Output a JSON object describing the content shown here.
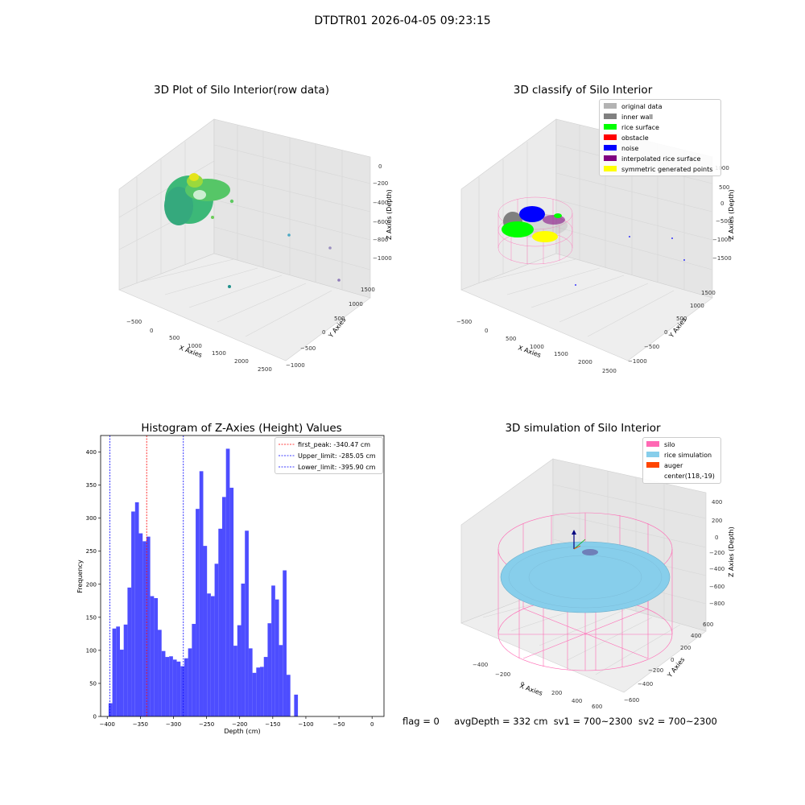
{
  "suptitle": "DTDTR01 2026-04-05 09:23:15",
  "footer": {
    "flag": "flag = 0",
    "avg_depth": "avgDepth = 332 cm",
    "sv1": "sv1 = 700~2300",
    "sv2": "sv2 = 700~2300"
  },
  "colors": {
    "hist_bar": "#4d4dff",
    "first_peak": "#ff0000",
    "limits": "#0000ff",
    "silo": "#ff69b4",
    "rice_sim": "#87ceeb",
    "auger": "#ff4500"
  },
  "chart_data": [
    {
      "type": "scatter",
      "title": "3D Plot of Silo Interior(row data)",
      "xlabel": "X Axies",
      "ylabel": "Y Axies",
      "zlabel": "Z Axies (Depth)",
      "x_ticks": [
        "−500",
        "0",
        "500",
        "1000",
        "1500",
        "2000",
        "2500"
      ],
      "y_ticks": [
        "−1000",
        "−500",
        "0",
        "500",
        "1000",
        "1500"
      ],
      "z_ticks": [
        "−1000",
        "−800",
        "−600",
        "−400",
        "−200",
        "0"
      ],
      "colormap": "viridis"
    },
    {
      "type": "scatter",
      "title": "3D classify of Silo Interior",
      "xlabel": "X Axies",
      "ylabel": "Y Axies",
      "zlabel": "Z Axies (Depth)",
      "x_ticks": [
        "−500",
        "0",
        "500",
        "1000",
        "1500",
        "2000",
        "2500"
      ],
      "y_ticks": [
        "−1000",
        "−500",
        "0",
        "500",
        "1000",
        "1500"
      ],
      "z_ticks": [
        "−1500",
        "−1000",
        "−500",
        "0",
        "500",
        "1000"
      ],
      "legend": [
        {
          "label": "original data",
          "color": "#b3b3b3"
        },
        {
          "label": "inner wall",
          "color": "#808080"
        },
        {
          "label": "rice surface",
          "color": "#00ff00"
        },
        {
          "label": "obstacle",
          "color": "#ff0000"
        },
        {
          "label": "noise",
          "color": "#0000ff"
        },
        {
          "label": "interpolated rice surface",
          "color": "#800080"
        },
        {
          "label": "symmetric generated points",
          "color": "#ffff00"
        }
      ],
      "legend_loc": "upper right"
    },
    {
      "type": "bar",
      "title": "Histogram of Z-Axies (Height) Values",
      "xlabel": "Depth (cm)",
      "ylabel": "Frequency",
      "xlim": [
        -410,
        18
      ],
      "ylim": [
        0,
        425
      ],
      "bin_start": -398,
      "bin_width": 5.72,
      "values": [
        20,
        133,
        136,
        101,
        139,
        195,
        310,
        324,
        277,
        265,
        272,
        182,
        179,
        131,
        99,
        90,
        91,
        86,
        83,
        76,
        88,
        103,
        140,
        314,
        371,
        258,
        186,
        182,
        231,
        284,
        332,
        405,
        346,
        107,
        138,
        201,
        281,
        103,
        66,
        74,
        75,
        90,
        141,
        198,
        177,
        108,
        221,
        63,
        0,
        33
      ],
      "x_ticks": [
        -400,
        -350,
        -300,
        -250,
        -200,
        -150,
        -100,
        -50,
        0
      ],
      "x_tick_labels": [
        "−400",
        "−350",
        "−300",
        "−250",
        "−200",
        "−150",
        "−100",
        "−50",
        "0"
      ],
      "y_ticks": [
        0,
        50,
        100,
        150,
        200,
        250,
        300,
        350,
        400
      ],
      "vlines": [
        {
          "label": "first_peak: -340.47 cm",
          "x": -340.47,
          "color": "#ff0000"
        },
        {
          "label": "Upper_limit: -285.05 cm",
          "x": -285.05,
          "color": "#0000ff"
        },
        {
          "label": "Lower_limit: -395.90 cm",
          "x": -395.9,
          "color": "#0000ff"
        }
      ],
      "legend_loc": "upper right"
    },
    {
      "type": "scatter",
      "title": "3D simulation of Silo Interior",
      "xlabel": "X Axies",
      "ylabel": "Y Axies",
      "zlabel": "Z Axies (Depth)",
      "x_ticks": [
        "−400",
        "−200",
        "0",
        "200",
        "400",
        "600"
      ],
      "y_ticks": [
        "−600",
        "−400",
        "−200",
        "0",
        "200",
        "400",
        "600"
      ],
      "z_ticks": [
        "−800",
        "−600",
        "−400",
        "−200",
        "0",
        "200",
        "400"
      ],
      "legend": [
        {
          "label": "silo",
          "color": "#ff69b4"
        },
        {
          "label": "rice simulation",
          "color": "#87ceeb"
        },
        {
          "label": "auger",
          "color": "#ff4500"
        },
        {
          "label": "center(118,-19)",
          "color": ""
        }
      ],
      "legend_loc": "upper right"
    }
  ]
}
